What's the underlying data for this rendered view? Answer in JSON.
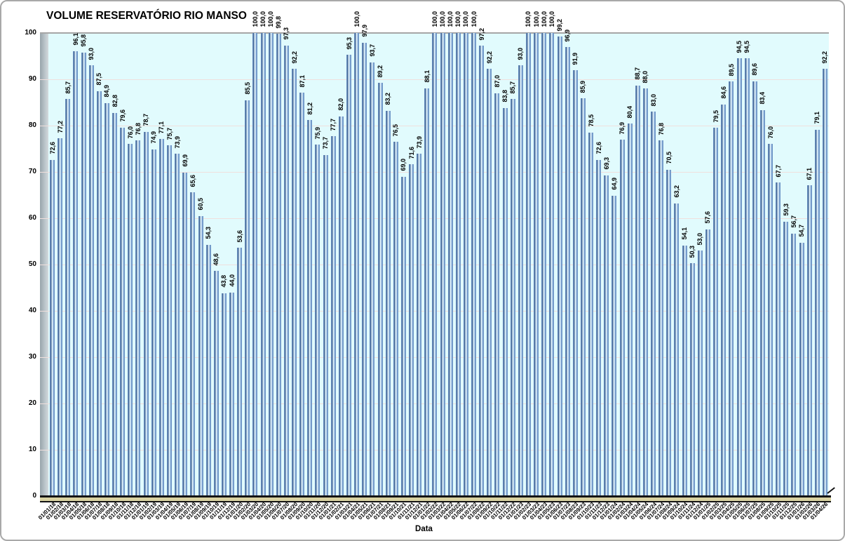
{
  "chart_data": {
    "type": "bar",
    "title": "VOLUME RESERVATÓRIO RIO MANSO",
    "xlabel": "Data",
    "ylabel": "",
    "ylim": [
      0,
      100
    ],
    "yticks": [
      0,
      10,
      20,
      30,
      40,
      50,
      60,
      70,
      80,
      90,
      100
    ],
    "grid": true,
    "legend": false,
    "data_labels": true,
    "decimal_separator": ",",
    "colors": {
      "plot_bg": "#E1FBFD",
      "bar_mid": "#6F97C9",
      "bar_dark": "#3C5A84",
      "bar_light": "#EEF9FE",
      "gridline": "#EFE0DD",
      "top_gridline": "#A6A6A6",
      "wall": "#AEB8BE",
      "floor": "#D9D2A2",
      "axis_line": "#141414",
      "text": "#000000"
    },
    "categories": [
      "01/01/18",
      "01/02/18",
      "01/03/18",
      "01/04/18",
      "01/05/18",
      "01/06/18",
      "01/07/18",
      "01/08/18",
      "01/09/18",
      "01/10/18",
      "01/11/18",
      "01/12/18",
      "01/01/19",
      "01/02/19",
      "01/03/19",
      "01/04/19",
      "01/05/19",
      "01/06/19",
      "01/07/19",
      "01/08/19",
      "01/09/19",
      "01/10/19",
      "01/11/19",
      "01/12/19",
      "01/01/20",
      "01/02/20",
      "01/03/20",
      "01/04/20",
      "01/05/20",
      "01/06/20",
      "01/07/20",
      "01/08/20",
      "01/09/20",
      "01/10/20",
      "01/11/20",
      "01/12/20",
      "01/01/21",
      "01/02/21",
      "01/03/21",
      "01/04/21",
      "01/05/21",
      "01/06/21",
      "01/07/21",
      "01/08/21",
      "01/09/21",
      "01/10/21",
      "01/11/21",
      "01/12/21",
      "01/01/22",
      "01/02/22",
      "01/03/22",
      "01/04/22",
      "01/05/22",
      "01/06/22",
      "01/07/22",
      "01/08/22",
      "01/09/22",
      "01/10/22",
      "01/11/22",
      "01/12/22",
      "01/01/23",
      "01/02/23",
      "01/03/23",
      "01/04/23",
      "01/05/23",
      "01/06/23",
      "01/07/23",
      "01/08/23",
      "01/09/23",
      "01/10/23",
      "01/11/23",
      "01/12/23",
      "01/01/24",
      "01/02/24",
      "01/03/24",
      "01/04/24",
      "01/05/24",
      "01/06/24",
      "01/07/24",
      "01/08/24",
      "01/09/24",
      "01/10/24",
      "01/11/24",
      "01/12/24",
      "01/01/25",
      "01/02/25",
      "01/03/25",
      "01/04/25",
      "01/05/25",
      "01/06/25",
      "01/07/25",
      "01/08/25",
      "01/09/25",
      "01/10/25",
      "01/11/25",
      "01/12/25",
      "01/01/26",
      "01/02/26",
      "01/03/26",
      "01/04/26"
    ],
    "values": [
      72.6,
      77.2,
      85.7,
      96.1,
      95.8,
      93.0,
      87.5,
      84.9,
      82.8,
      79.6,
      76.0,
      76.8,
      78.7,
      74.9,
      77.1,
      75.7,
      73.9,
      69.9,
      65.6,
      60.5,
      54.3,
      48.6,
      43.8,
      44.0,
      53.6,
      85.5,
      100.0,
      100.0,
      100.0,
      99.8,
      97.3,
      92.2,
      87.1,
      81.2,
      75.9,
      73.7,
      77.7,
      82.0,
      95.3,
      100.0,
      97.9,
      93.7,
      89.2,
      83.2,
      76.5,
      69.0,
      71.6,
      73.9,
      88.1,
      100.0,
      100.0,
      100.0,
      100.0,
      100.0,
      100.0,
      97.2,
      92.2,
      87.0,
      83.8,
      85.7,
      93.0,
      100.0,
      100.0,
      100.0,
      100.0,
      99.2,
      96.9,
      91.9,
      85.9,
      78.5,
      72.6,
      69.3,
      64.9,
      76.9,
      80.4,
      88.7,
      88.0,
      83.0,
      76.8,
      70.5,
      63.2,
      54.1,
      50.3,
      53.0,
      57.6,
      79.5,
      84.6,
      89.5,
      94.5,
      94.5,
      89.6,
      83.4,
      76.0,
      67.7,
      59.3,
      56.7,
      54.7,
      67.1,
      79.1,
      92.2
    ]
  }
}
